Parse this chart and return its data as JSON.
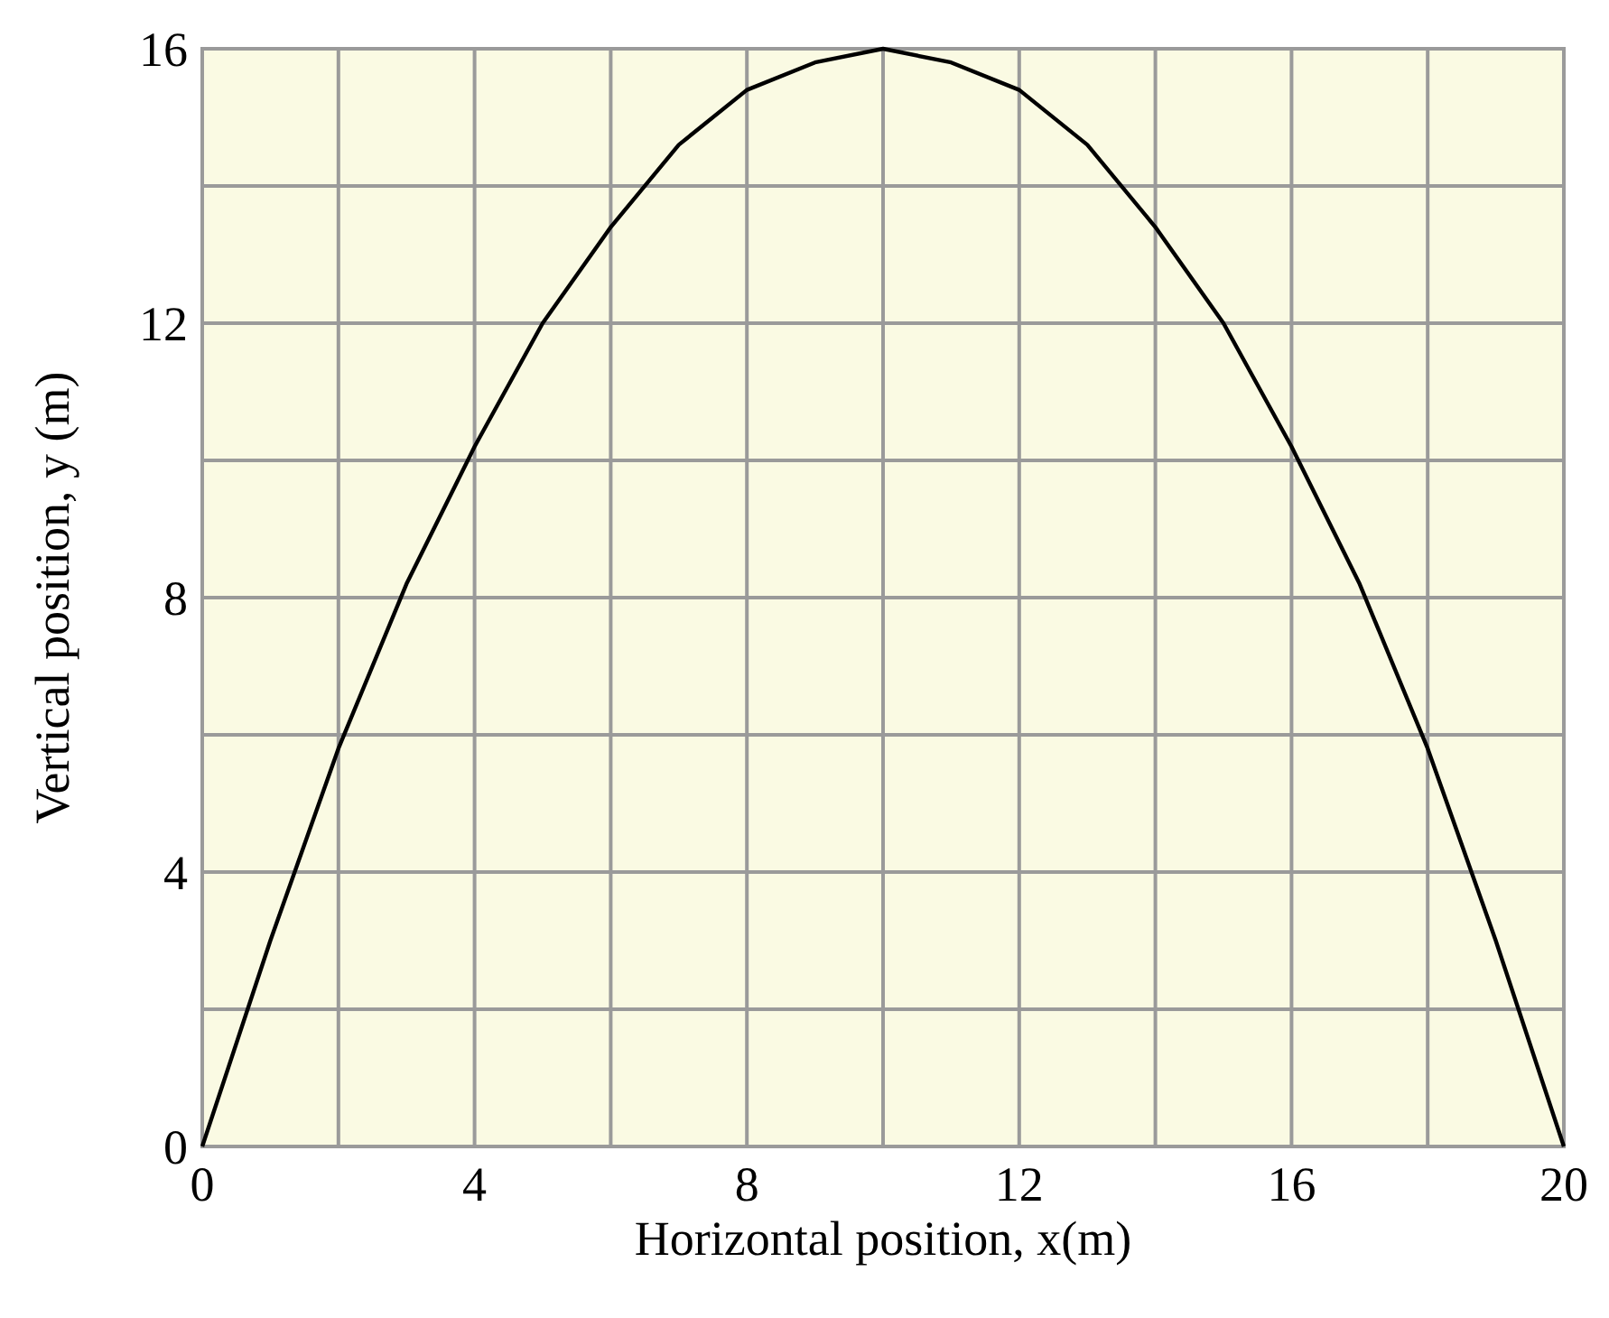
{
  "chart_data": {
    "type": "line",
    "xlabel": "Horizontal position, x(m)",
    "ylabel": "Vertical position, y (m)",
    "x": [
      0,
      1,
      2,
      3,
      4,
      5,
      6,
      7,
      8,
      9,
      10,
      11,
      12,
      13,
      14,
      15,
      16,
      17,
      18,
      19,
      20
    ],
    "series": [
      {
        "color": "#000000",
        "values": [
          0,
          3.0,
          5.8,
          8.2,
          10.2,
          12.0,
          13.4,
          14.6,
          15.4,
          15.8,
          16,
          15.8,
          15.4,
          14.6,
          13.4,
          12.0,
          10.2,
          8.2,
          5.8,
          3.0,
          0
        ]
      }
    ],
    "xlim": [
      0,
      20
    ],
    "ylim": [
      0,
      16
    ],
    "xticks": [
      0,
      {
        "value": 2,
        "label": null
      },
      4,
      {
        "value": 6,
        "label": null
      },
      8,
      {
        "value": 10,
        "label": null
      },
      12,
      {
        "value": 14,
        "label": null
      },
      16,
      {
        "value": 18,
        "label": null
      },
      20
    ],
    "yticks": [
      0,
      {
        "value": 2,
        "label": null
      },
      4,
      {
        "value": 6,
        "label": null
      },
      8,
      {
        "value": 10,
        "label": null
      },
      12,
      {
        "value": 14,
        "label": null
      },
      16
    ],
    "grid": true,
    "marker": "none",
    "line_style": "solid"
  }
}
